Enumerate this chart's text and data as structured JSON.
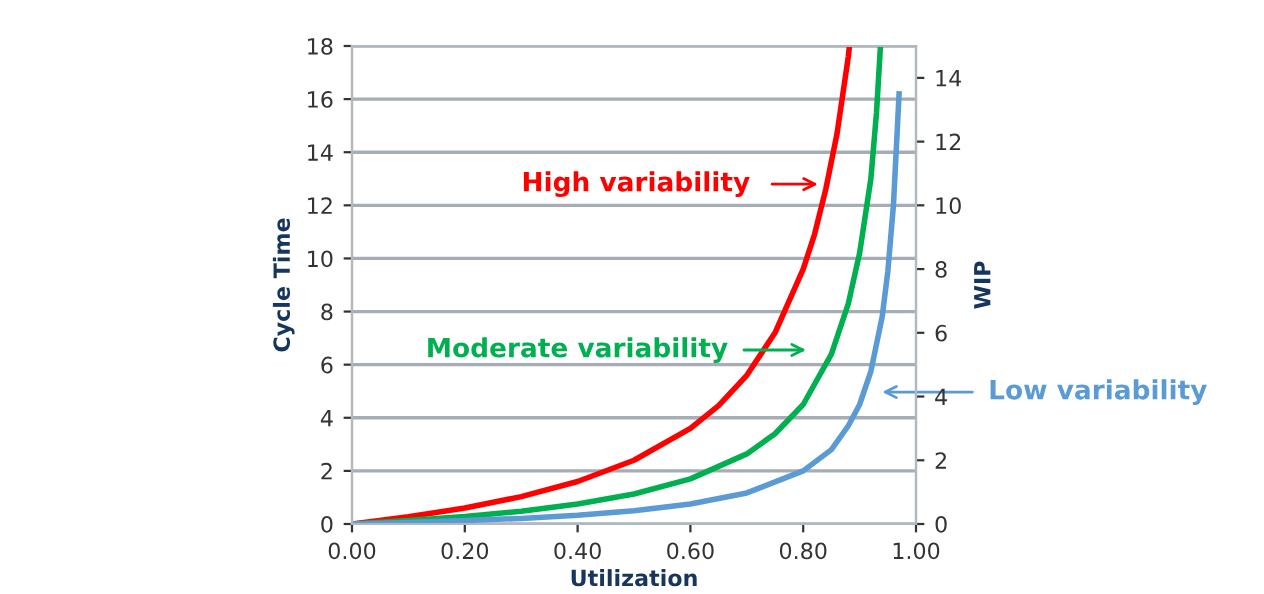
{
  "chart_data": {
    "type": "line",
    "xlabel": "Utilization",
    "ylabel": "Cycle Time",
    "y2label": "WIP",
    "xlim": [
      0,
      1
    ],
    "xticks": [
      {
        "value": 0,
        "label": "0.00"
      },
      {
        "value": 0.2,
        "label": "0.20"
      },
      {
        "value": 0.4,
        "label": "0.40"
      },
      {
        "value": 0.6,
        "label": "0.60"
      },
      {
        "value": 0.8,
        "label": "0.80"
      },
      {
        "value": 1,
        "label": "1.00"
      }
    ],
    "ylim": [
      0,
      18
    ],
    "yticks": [
      0,
      2,
      4,
      6,
      8,
      10,
      12,
      14,
      16,
      18
    ],
    "y2lim": [
      0,
      15
    ],
    "y2ticks": [
      0,
      2,
      4,
      6,
      8,
      10,
      12,
      14
    ],
    "grid": "y",
    "legend": false,
    "marker": "none",
    "line_style": "solid",
    "series": [
      {
        "color": "#ff0000",
        "x": [
          0,
          0.1,
          0.2,
          0.3,
          0.4,
          0.5,
          0.6,
          0.65,
          0.7,
          0.75,
          0.8,
          0.82,
          0.84,
          0.86,
          0.88,
          0.882
        ],
        "values": [
          0,
          0.27,
          0.6,
          1.03,
          1.6,
          2.4,
          3.6,
          4.46,
          5.6,
          7.2,
          9.6,
          10.9,
          12.6,
          14.7,
          17.6,
          18
        ]
      },
      {
        "color": "#00b050",
        "x": [
          0,
          0.1,
          0.2,
          0.3,
          0.4,
          0.5,
          0.6,
          0.7,
          0.75,
          0.8,
          0.85,
          0.88,
          0.9,
          0.92,
          0.93,
          0.937
        ],
        "values": [
          0,
          0.13,
          0.28,
          0.48,
          0.75,
          1.13,
          1.7,
          2.64,
          3.4,
          4.5,
          6.4,
          8.3,
          10.2,
          13,
          15.5,
          18
        ]
      },
      {
        "color": "#5b9bd5",
        "x": [
          0,
          0.1,
          0.2,
          0.3,
          0.4,
          0.5,
          0.6,
          0.7,
          0.8,
          0.85,
          0.88,
          0.9,
          0.92,
          0.94,
          0.95,
          0.96,
          0.97
        ],
        "values": [
          0,
          0.06,
          0.13,
          0.21,
          0.33,
          0.5,
          0.75,
          1.17,
          2,
          2.8,
          3.7,
          4.5,
          5.75,
          7.8,
          9.5,
          12,
          16.2
        ]
      }
    ],
    "annotations": [
      "High variability",
      "Moderate variability",
      "Low variability"
    ]
  }
}
